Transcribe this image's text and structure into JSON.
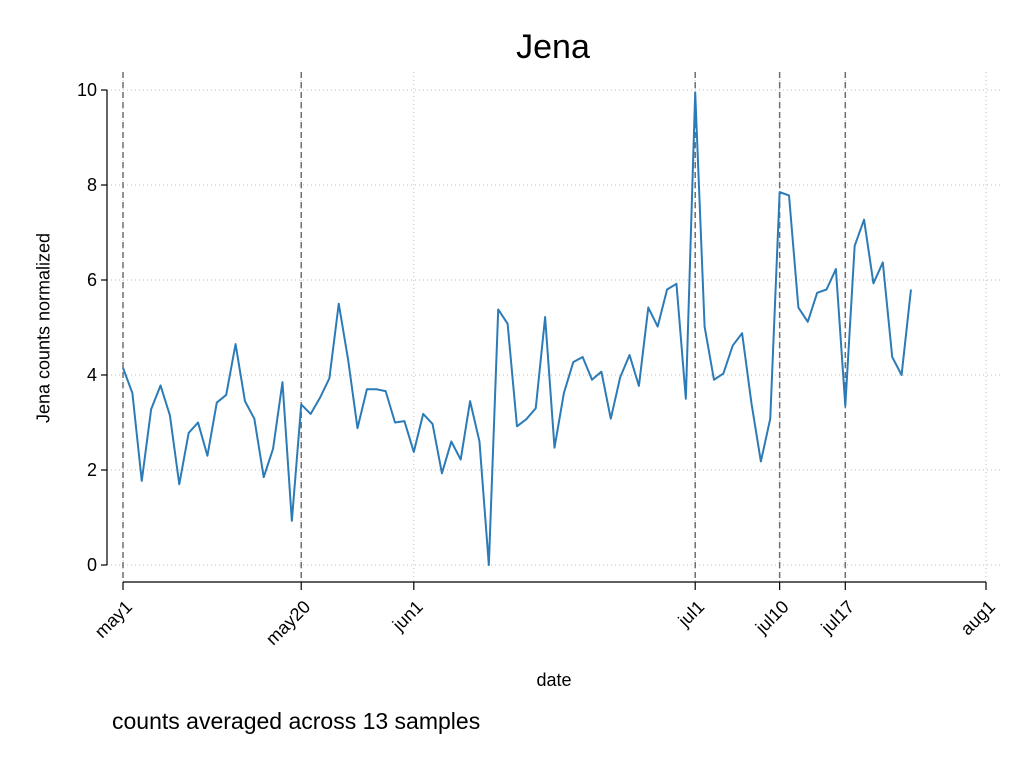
{
  "chart_data": {
    "type": "line",
    "title": "Jena",
    "xlabel": "date",
    "ylabel": "Jena counts normalized",
    "note": "counts averaged across 13 samples",
    "ylim": [
      0,
      10
    ],
    "yticks": [
      0,
      2,
      4,
      6,
      8,
      10
    ],
    "x_date_range": [
      "2020-05-01",
      "2020-08-01"
    ],
    "xticks": [
      {
        "date": "2020-05-01",
        "label": "may1"
      },
      {
        "date": "2020-05-20",
        "label": "may20"
      },
      {
        "date": "2020-06-01",
        "label": "jun1"
      },
      {
        "date": "2020-07-01",
        "label": "jul1"
      },
      {
        "date": "2020-07-10",
        "label": "jul10"
      },
      {
        "date": "2020-07-17",
        "label": "jul17"
      },
      {
        "date": "2020-08-01",
        "label": "aug1"
      }
    ],
    "dashed_reference_dates": [
      "2020-05-01",
      "2020-05-20",
      "2020-07-01",
      "2020-07-10",
      "2020-07-17"
    ],
    "grid": true,
    "line_color": "#2c7bb6",
    "series": [
      {
        "start_date": "2020-05-01",
        "values": [
          4.15,
          3.62,
          1.77,
          3.28,
          3.78,
          3.15,
          1.7,
          2.78,
          3.0,
          2.3,
          3.42,
          3.58,
          4.65,
          3.45,
          3.08,
          1.85,
          2.45,
          3.85,
          0.93,
          3.38,
          3.18,
          3.52,
          3.93,
          5.5,
          4.32,
          2.88,
          3.7,
          3.7,
          3.66,
          3.0,
          3.03,
          2.38,
          3.18,
          2.97,
          1.93,
          2.6,
          2.22,
          3.45,
          2.6,
          0.0,
          5.38,
          5.08,
          2.92,
          3.07,
          3.3,
          5.22,
          2.47,
          3.62,
          4.27,
          4.38,
          3.9,
          4.07,
          3.08,
          3.95,
          4.42,
          3.77,
          5.42,
          5.02,
          5.8,
          5.92,
          3.5,
          9.95,
          5.02,
          3.9,
          4.03,
          4.62,
          4.88,
          3.4,
          2.18,
          3.08,
          7.85,
          7.78,
          5.42,
          5.12,
          5.73,
          5.8,
          6.23,
          3.35,
          6.72,
          7.27,
          5.93,
          6.37,
          4.38,
          4.0,
          5.8
        ]
      }
    ]
  }
}
